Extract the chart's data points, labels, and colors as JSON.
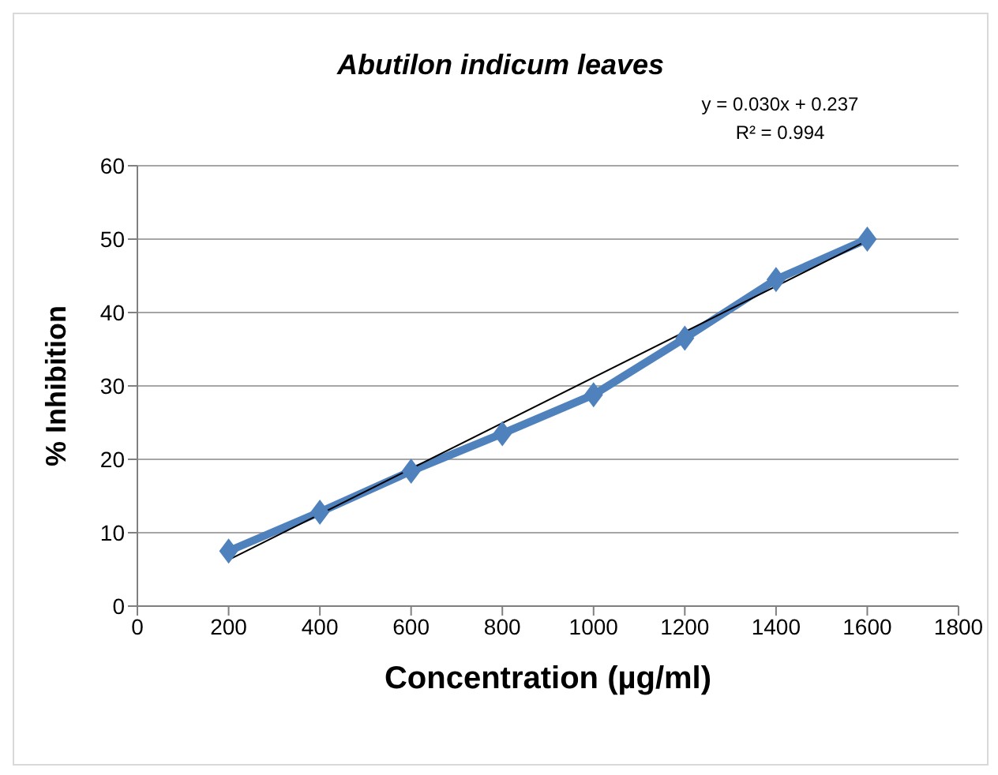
{
  "chart_data": {
    "type": "line",
    "title": "Abutilon indicum leaves",
    "xlabel": "Concentration (µg/ml)",
    "ylabel": "% Inhibition",
    "x": [
      200,
      400,
      600,
      800,
      1000,
      1200,
      1400,
      1600
    ],
    "series": [
      {
        "color": "#4f81bd",
        "values": [
          7.5,
          12.8,
          18.4,
          23.5,
          28.8,
          36.5,
          44.5,
          50
        ],
        "marker": "diamond",
        "line_style": "solid"
      },
      {
        "color": "#000000",
        "x": [
          200,
          1600
        ],
        "values": [
          6.3,
          49.8
        ],
        "marker": "none",
        "line_style": "solid"
      }
    ],
    "annotations": [
      "y = 0.030x + 0.237",
      "R² = 0.994"
    ],
    "xlim": [
      0,
      1800
    ],
    "xticks": [
      0,
      200,
      400,
      600,
      800,
      1000,
      1200,
      1400,
      1600,
      1800
    ],
    "ylim": [
      0,
      60
    ],
    "yticks": [
      0,
      10,
      20,
      30,
      40,
      50,
      60
    ],
    "grid": "y"
  }
}
